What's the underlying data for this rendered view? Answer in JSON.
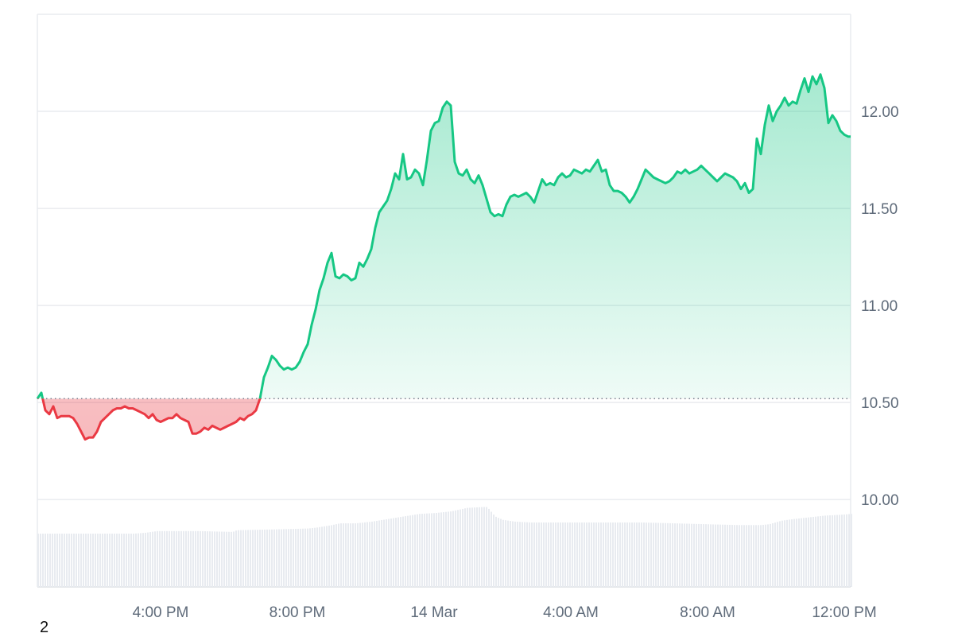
{
  "chart_data": {
    "type": "area",
    "baseline": 10.52,
    "y_range": [
      9.55,
      12.5
    ],
    "y_ticks": [
      {
        "value": 10.0,
        "label": "10.00"
      },
      {
        "value": 10.5,
        "label": "10.50"
      },
      {
        "value": 11.0,
        "label": "11.00"
      },
      {
        "value": 11.5,
        "label": "11.50"
      },
      {
        "value": 12.0,
        "label": "12.00"
      }
    ],
    "x_range": [
      0,
      1023
    ],
    "x_ticks": [
      {
        "x": 155,
        "label": "4:00 PM"
      },
      {
        "x": 327,
        "label": "8:00 PM"
      },
      {
        "x": 499,
        "label": "14 Mar"
      },
      {
        "x": 671,
        "label": "4:00 AM"
      },
      {
        "x": 843,
        "label": "8:00 AM"
      },
      {
        "x": 1015,
        "label": "12:00 PM"
      }
    ],
    "price_series": [
      [
        0,
        10.52
      ],
      [
        5,
        10.55
      ],
      [
        10,
        10.46
      ],
      [
        15,
        10.44
      ],
      [
        20,
        10.48
      ],
      [
        25,
        10.42
      ],
      [
        30,
        10.43
      ],
      [
        35,
        10.43
      ],
      [
        40,
        10.43
      ],
      [
        45,
        10.42
      ],
      [
        50,
        10.39
      ],
      [
        55,
        10.35
      ],
      [
        60,
        10.31
      ],
      [
        65,
        10.32
      ],
      [
        70,
        10.32
      ],
      [
        75,
        10.35
      ],
      [
        80,
        10.4
      ],
      [
        85,
        10.42
      ],
      [
        90,
        10.44
      ],
      [
        95,
        10.46
      ],
      [
        100,
        10.47
      ],
      [
        105,
        10.47
      ],
      [
        110,
        10.48
      ],
      [
        115,
        10.47
      ],
      [
        120,
        10.47
      ],
      [
        125,
        10.46
      ],
      [
        130,
        10.45
      ],
      [
        135,
        10.44
      ],
      [
        140,
        10.42
      ],
      [
        145,
        10.44
      ],
      [
        150,
        10.41
      ],
      [
        155,
        10.4
      ],
      [
        160,
        10.41
      ],
      [
        165,
        10.42
      ],
      [
        170,
        10.42
      ],
      [
        175,
        10.44
      ],
      [
        180,
        10.42
      ],
      [
        185,
        10.41
      ],
      [
        190,
        10.4
      ],
      [
        195,
        10.34
      ],
      [
        200,
        10.34
      ],
      [
        205,
        10.35
      ],
      [
        210,
        10.37
      ],
      [
        215,
        10.36
      ],
      [
        220,
        10.38
      ],
      [
        225,
        10.37
      ],
      [
        230,
        10.36
      ],
      [
        235,
        10.37
      ],
      [
        240,
        10.38
      ],
      [
        245,
        10.39
      ],
      [
        250,
        10.4
      ],
      [
        255,
        10.42
      ],
      [
        260,
        10.41
      ],
      [
        265,
        10.43
      ],
      [
        270,
        10.44
      ],
      [
        275,
        10.46
      ],
      [
        280,
        10.52
      ],
      [
        285,
        10.63
      ],
      [
        290,
        10.68
      ],
      [
        295,
        10.74
      ],
      [
        300,
        10.72
      ],
      [
        305,
        10.69
      ],
      [
        310,
        10.67
      ],
      [
        315,
        10.68
      ],
      [
        320,
        10.67
      ],
      [
        325,
        10.68
      ],
      [
        330,
        10.71
      ],
      [
        335,
        10.76
      ],
      [
        340,
        10.8
      ],
      [
        345,
        10.9
      ],
      [
        350,
        10.98
      ],
      [
        355,
        11.08
      ],
      [
        360,
        11.14
      ],
      [
        365,
        11.22
      ],
      [
        370,
        11.27
      ],
      [
        375,
        11.15
      ],
      [
        380,
        11.14
      ],
      [
        385,
        11.16
      ],
      [
        390,
        11.15
      ],
      [
        395,
        11.13
      ],
      [
        400,
        11.14
      ],
      [
        405,
        11.22
      ],
      [
        410,
        11.2
      ],
      [
        415,
        11.24
      ],
      [
        420,
        11.29
      ],
      [
        425,
        11.4
      ],
      [
        430,
        11.48
      ],
      [
        435,
        11.51
      ],
      [
        440,
        11.54
      ],
      [
        445,
        11.6
      ],
      [
        450,
        11.68
      ],
      [
        455,
        11.65
      ],
      [
        460,
        11.78
      ],
      [
        465,
        11.65
      ],
      [
        470,
        11.66
      ],
      [
        475,
        11.7
      ],
      [
        480,
        11.68
      ],
      [
        485,
        11.62
      ],
      [
        490,
        11.75
      ],
      [
        495,
        11.9
      ],
      [
        500,
        11.94
      ],
      [
        505,
        11.95
      ],
      [
        510,
        12.02
      ],
      [
        515,
        12.05
      ],
      [
        520,
        12.03
      ],
      [
        525,
        11.74
      ],
      [
        530,
        11.68
      ],
      [
        535,
        11.67
      ],
      [
        540,
        11.7
      ],
      [
        545,
        11.65
      ],
      [
        550,
        11.63
      ],
      [
        555,
        11.67
      ],
      [
        560,
        11.62
      ],
      [
        565,
        11.55
      ],
      [
        570,
        11.48
      ],
      [
        575,
        11.46
      ],
      [
        580,
        11.47
      ],
      [
        585,
        11.46
      ],
      [
        590,
        11.52
      ],
      [
        595,
        11.56
      ],
      [
        600,
        11.57
      ],
      [
        605,
        11.56
      ],
      [
        610,
        11.57
      ],
      [
        615,
        11.58
      ],
      [
        620,
        11.56
      ],
      [
        625,
        11.53
      ],
      [
        630,
        11.59
      ],
      [
        635,
        11.65
      ],
      [
        640,
        11.62
      ],
      [
        645,
        11.63
      ],
      [
        650,
        11.62
      ],
      [
        655,
        11.66
      ],
      [
        660,
        11.68
      ],
      [
        665,
        11.66
      ],
      [
        670,
        11.67
      ],
      [
        675,
        11.7
      ],
      [
        680,
        11.69
      ],
      [
        685,
        11.68
      ],
      [
        690,
        11.7
      ],
      [
        695,
        11.69
      ],
      [
        700,
        11.72
      ],
      [
        705,
        11.75
      ],
      [
        710,
        11.69
      ],
      [
        715,
        11.7
      ],
      [
        720,
        11.62
      ],
      [
        725,
        11.59
      ],
      [
        730,
        11.59
      ],
      [
        735,
        11.58
      ],
      [
        740,
        11.56
      ],
      [
        745,
        11.53
      ],
      [
        750,
        11.56
      ],
      [
        755,
        11.6
      ],
      [
        760,
        11.65
      ],
      [
        765,
        11.7
      ],
      [
        770,
        11.68
      ],
      [
        775,
        11.66
      ],
      [
        780,
        11.65
      ],
      [
        785,
        11.64
      ],
      [
        790,
        11.63
      ],
      [
        795,
        11.64
      ],
      [
        800,
        11.66
      ],
      [
        805,
        11.69
      ],
      [
        810,
        11.68
      ],
      [
        815,
        11.7
      ],
      [
        820,
        11.68
      ],
      [
        825,
        11.69
      ],
      [
        830,
        11.7
      ],
      [
        835,
        11.72
      ],
      [
        840,
        11.7
      ],
      [
        845,
        11.68
      ],
      [
        850,
        11.66
      ],
      [
        855,
        11.64
      ],
      [
        860,
        11.66
      ],
      [
        865,
        11.68
      ],
      [
        870,
        11.67
      ],
      [
        875,
        11.66
      ],
      [
        880,
        11.64
      ],
      [
        885,
        11.6
      ],
      [
        890,
        11.63
      ],
      [
        895,
        11.58
      ],
      [
        900,
        11.6
      ],
      [
        905,
        11.86
      ],
      [
        910,
        11.78
      ],
      [
        915,
        11.93
      ],
      [
        920,
        12.03
      ],
      [
        925,
        11.95
      ],
      [
        930,
        12.0
      ],
      [
        935,
        12.03
      ],
      [
        940,
        12.07
      ],
      [
        945,
        12.03
      ],
      [
        950,
        12.05
      ],
      [
        955,
        12.04
      ],
      [
        960,
        12.11
      ],
      [
        965,
        12.17
      ],
      [
        970,
        12.1
      ],
      [
        975,
        12.18
      ],
      [
        980,
        12.14
      ],
      [
        985,
        12.19
      ],
      [
        990,
        12.12
      ],
      [
        995,
        11.94
      ],
      [
        1000,
        11.98
      ],
      [
        1005,
        11.95
      ],
      [
        1010,
        11.9
      ],
      [
        1015,
        11.88
      ],
      [
        1020,
        11.87
      ],
      [
        1023,
        11.87
      ]
    ],
    "volume_range": [
      0,
      1
    ],
    "volume_series": [
      [
        0,
        0.62
      ],
      [
        60,
        0.62
      ],
      [
        120,
        0.62
      ],
      [
        135,
        0.63
      ],
      [
        150,
        0.65
      ],
      [
        200,
        0.65
      ],
      [
        245,
        0.64
      ],
      [
        250,
        0.66
      ],
      [
        300,
        0.67
      ],
      [
        340,
        0.68
      ],
      [
        350,
        0.69
      ],
      [
        370,
        0.72
      ],
      [
        380,
        0.74
      ],
      [
        400,
        0.74
      ],
      [
        420,
        0.76
      ],
      [
        440,
        0.79
      ],
      [
        460,
        0.82
      ],
      [
        480,
        0.85
      ],
      [
        500,
        0.86
      ],
      [
        520,
        0.88
      ],
      [
        540,
        0.92
      ],
      [
        560,
        0.93
      ],
      [
        565,
        0.93
      ],
      [
        575,
        0.82
      ],
      [
        585,
        0.78
      ],
      [
        600,
        0.76
      ],
      [
        620,
        0.75
      ],
      [
        650,
        0.75
      ],
      [
        700,
        0.75
      ],
      [
        760,
        0.75
      ],
      [
        800,
        0.74
      ],
      [
        840,
        0.73
      ],
      [
        880,
        0.72
      ],
      [
        910,
        0.72
      ],
      [
        920,
        0.73
      ],
      [
        935,
        0.77
      ],
      [
        950,
        0.79
      ],
      [
        970,
        0.81
      ],
      [
        990,
        0.83
      ],
      [
        1010,
        0.84
      ],
      [
        1023,
        0.85
      ]
    ],
    "colors": {
      "up_line": "#16c784",
      "up_fill": "#16c784",
      "down_line": "#ea3943",
      "down_fill": "#ea3943",
      "grid": "#e9ebef",
      "axis_text": "#5f6b7a",
      "volume": "#e8ebf0",
      "baseline": "#7a8190"
    },
    "grid": true
  },
  "footer_note": "2"
}
